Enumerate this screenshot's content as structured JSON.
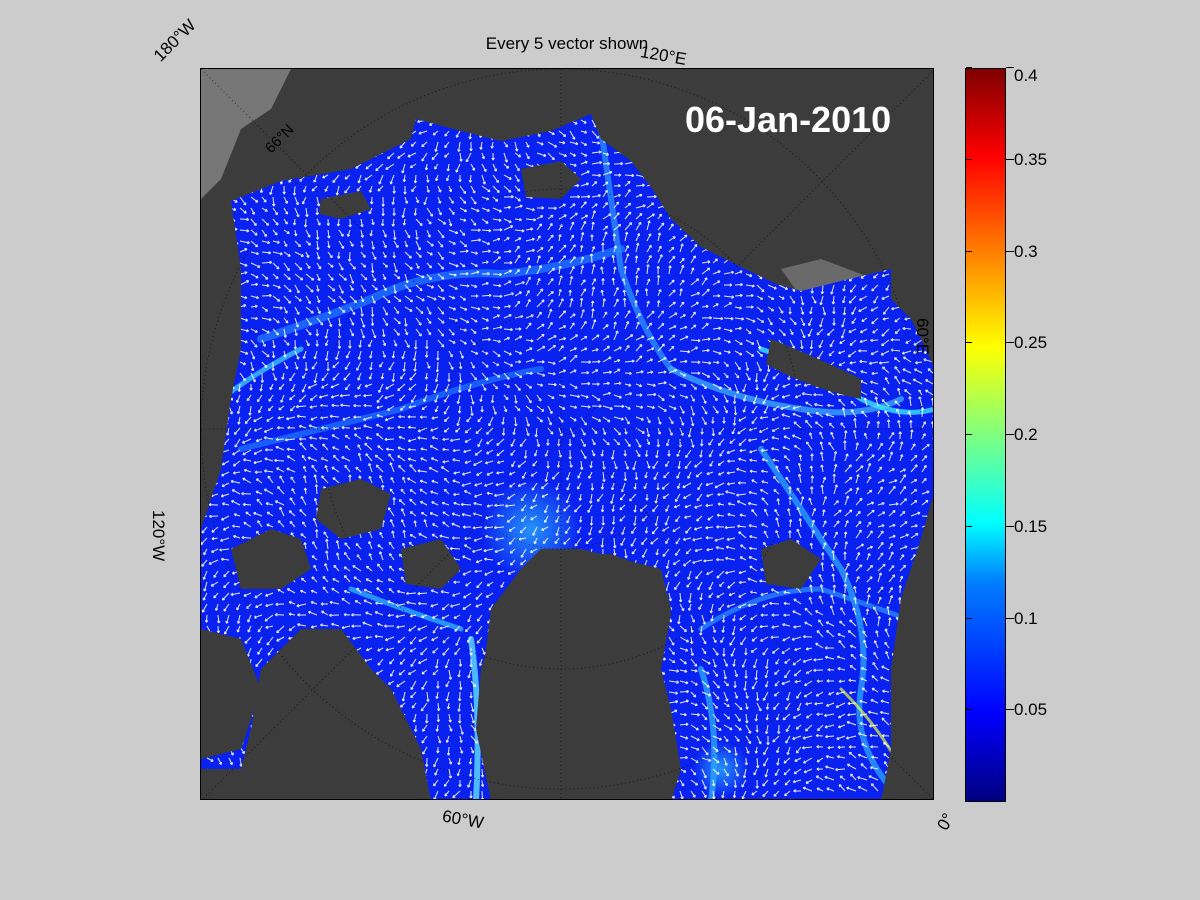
{
  "title": "Every 5 vector shown",
  "date": "06-Jan-2010",
  "grid_labels": {
    "w180": "180°W",
    "e120": "120°E",
    "e60": "60°E",
    "w120": "120°W",
    "w60": "60°W",
    "zero": "0°",
    "n66": "66°N"
  },
  "colorbar": {
    "colormap": "jet",
    "min": 0,
    "max": 0.4,
    "ticks": [
      "0.4",
      "0.35",
      "0.3",
      "0.25",
      "0.2",
      "0.15",
      "0.1",
      "0.05"
    ]
  },
  "colors": {
    "figure_background": "#cccccc",
    "land": "#3c3c3c",
    "coast_shelf": "#777777",
    "ocean_low": "#0a22f0",
    "vector": "#ffffff"
  }
}
